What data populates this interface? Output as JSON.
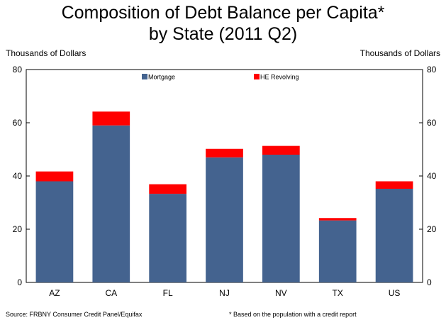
{
  "chart_data": {
    "type": "bar",
    "stacked": true,
    "title_line1": "Composition of Debt Balance per Capita*",
    "title_line2": "by State (2011 Q2)",
    "ylabel_left": "Thousands of Dollars",
    "ylabel_right": "Thousands of Dollars",
    "categories": [
      "AZ",
      "CA",
      "FL",
      "NJ",
      "NV",
      "TX",
      "US"
    ],
    "series": [
      {
        "name": "Mortgage",
        "color": "#44638f",
        "values": [
          38,
          59,
          33.3,
          47,
          48,
          23.3,
          35.2
        ]
      },
      {
        "name": "HE Revolving",
        "color": "#ff0000",
        "values": [
          3.7,
          5.2,
          3.6,
          3.2,
          3.3,
          0.9,
          2.8
        ]
      }
    ],
    "ylim": [
      0,
      80
    ],
    "yticks": [
      0,
      20,
      40,
      60,
      80
    ],
    "legend_position": "top",
    "grid": false
  },
  "footer": {
    "source": "Source: FRBNY Consumer Credit Panel/Equifax",
    "note": "* Based on the population with a credit report"
  }
}
